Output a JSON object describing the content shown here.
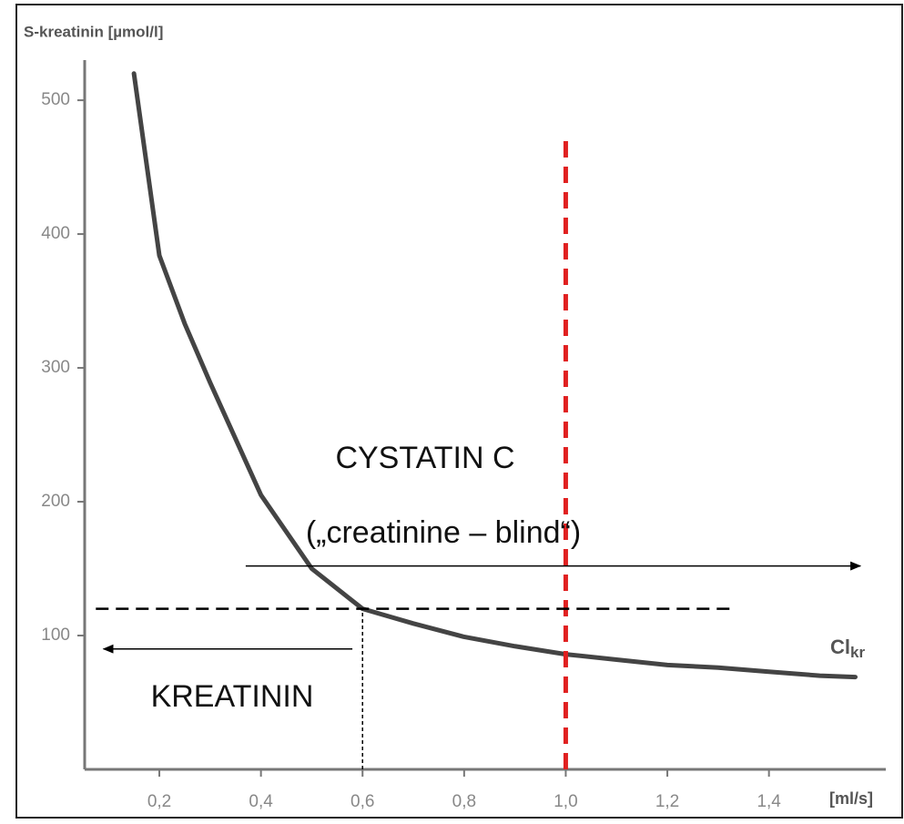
{
  "chart_data": {
    "type": "line",
    "title": "S-kreatinin [µmol/l]",
    "x_label": "[ml/s]",
    "curve_label": {
      "main": "Cl",
      "sub": "kr"
    },
    "annotations": [
      "CYSTATIN C",
      "(„creatinine – blind“)",
      "KREATININ"
    ],
    "x": [
      0.15,
      0.2,
      0.25,
      0.3,
      0.4,
      0.5,
      0.6,
      0.7,
      0.8,
      0.9,
      1.0,
      1.1,
      1.2,
      1.3,
      1.4,
      1.5,
      1.57
    ],
    "series": [
      {
        "name": "Cl kr",
        "color": "#444444",
        "values": [
          520,
          384,
          333,
          289,
          205,
          150,
          120,
          109,
          99,
          92,
          86,
          82,
          78,
          76,
          73,
          70,
          69
        ]
      }
    ],
    "xlim": [
      0.053,
      1.63
    ],
    "ylim": [
      0,
      530
    ],
    "xticks": [
      {
        "value": 0.2,
        "label": "0,2"
      },
      {
        "value": 0.4,
        "label": "0,4"
      },
      {
        "value": 0.6,
        "label": "0,6"
      },
      {
        "value": 0.8,
        "label": "0,8"
      },
      {
        "value": 1.0,
        "label": "1,0"
      },
      {
        "value": 1.2,
        "label": "1,2"
      },
      {
        "value": 1.4,
        "label": "1,4"
      }
    ],
    "yticks": [
      100,
      200,
      300,
      400,
      500
    ],
    "vertical_lines": [
      {
        "x": 1.0,
        "y_from": 0,
        "y_to": 473,
        "color": "#e02020"
      },
      {
        "x": 0.6,
        "y_from": 0,
        "y_to": 120,
        "color": "#000000"
      }
    ],
    "horizontal_lines": [
      {
        "y": 120,
        "x_from": 0.075,
        "x_to": 1.33,
        "color": "#000000"
      }
    ],
    "arrows": [
      {
        "y": 152,
        "x_from": 0.37,
        "x_to": 1.58
      },
      {
        "y": 90,
        "x_from": 0.58,
        "x_to": 0.09
      }
    ]
  }
}
